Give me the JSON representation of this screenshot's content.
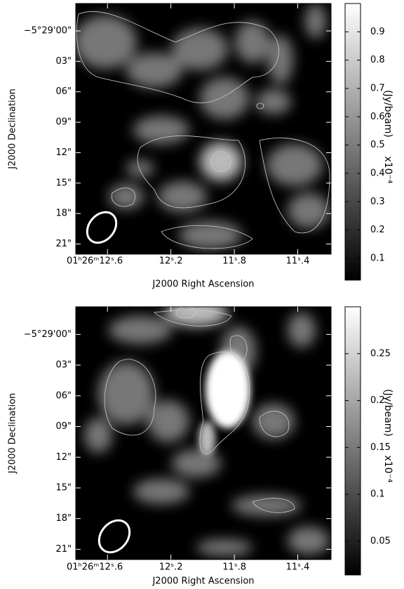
{
  "chart_data": [
    {
      "type": "image",
      "xlabel": "J2000 Right Ascension",
      "ylabel": "J2000 Declination",
      "xlim": [
        12.8,
        11.19
      ],
      "xticks": [
        {
          "value": 12.6,
          "label": "01ʰ26ᵐ12ˢ.6"
        },
        {
          "value": 12.2,
          "label": "12ˢ.2"
        },
        {
          "value": 11.8,
          "label": "11ˢ.8"
        },
        {
          "value": 11.4,
          "label": "11ˢ.4"
        }
      ],
      "ylim": [
        -2.7,
        22
      ],
      "yticks": [
        {
          "value": 0,
          "label": "−5°29'00\""
        },
        {
          "value": 3,
          "label": "03\""
        },
        {
          "value": 6,
          "label": "06\""
        },
        {
          "value": 9,
          "label": "09\""
        },
        {
          "value": 12,
          "label": "12\""
        },
        {
          "value": 15,
          "label": "15\""
        },
        {
          "value": 18,
          "label": "18\""
        },
        {
          "value": 21,
          "label": "21\""
        }
      ],
      "colorbar_label": "(Jy/beam)",
      "colorbar_scale": "x10⁻⁴",
      "clim": [
        0.023,
        1.0
      ],
      "cticks": [
        0.1,
        0.2,
        0.3,
        0.4,
        0.5,
        0.6,
        0.7,
        0.8,
        0.9
      ]
    },
    {
      "type": "image",
      "xlabel": "J2000 Right Ascension",
      "ylabel": "J2000 Declination",
      "xlim": [
        12.8,
        11.19
      ],
      "xticks": [
        {
          "value": 12.6,
          "label": "01ʰ26ᵐ12ˢ.6"
        },
        {
          "value": 12.2,
          "label": "12ˢ.2"
        },
        {
          "value": 11.8,
          "label": "11ˢ.8"
        },
        {
          "value": 11.4,
          "label": "11ˢ.4"
        }
      ],
      "ylim": [
        -2.7,
        22
      ],
      "yticks": [
        {
          "value": 0,
          "label": "−5°29'00\""
        },
        {
          "value": 3,
          "label": "03\""
        },
        {
          "value": 6,
          "label": "06\""
        },
        {
          "value": 9,
          "label": "09\""
        },
        {
          "value": 12,
          "label": "12\""
        },
        {
          "value": 15,
          "label": "15\""
        },
        {
          "value": 18,
          "label": "18\""
        },
        {
          "value": 21,
          "label": "21\""
        }
      ],
      "colorbar_label": "(Jy/beam)",
      "colorbar_scale": "x10⁻⁴",
      "clim": [
        0.014,
        0.3
      ],
      "cticks": [
        0.05,
        0.1,
        0.15,
        0.2,
        0.25
      ]
    }
  ]
}
